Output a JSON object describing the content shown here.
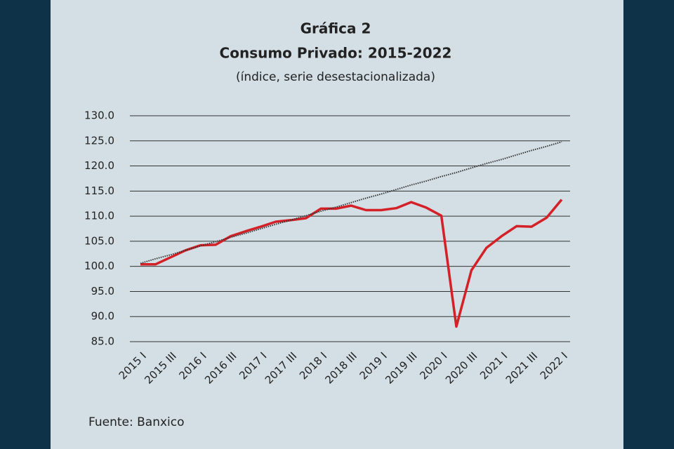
{
  "chart_data": {
    "type": "line",
    "title": "Gráfica 2",
    "subtitle": "Consumo Privado: 2015-2022",
    "subtitle2": "(índice, serie desestacionalizada)",
    "source": "Fuente: Banxico",
    "categories": [
      "2015 I",
      null,
      "2015 III",
      null,
      "2016 I",
      null,
      "2016 III",
      null,
      "2017 I",
      null,
      "2017 III",
      null,
      "2018 I",
      null,
      "2018 III",
      null,
      "2019 I",
      null,
      "2019 III",
      null,
      "2020 I",
      null,
      "2020 III",
      null,
      "2021 I",
      null,
      "2021 III",
      null,
      "2022 I"
    ],
    "series": [
      {
        "color": "#d42027",
        "style": "solid",
        "values": [
          100.4,
          100.4,
          101.8,
          103.2,
          104.2,
          104.3,
          106.0,
          107.0,
          107.9,
          108.9,
          109.2,
          109.6,
          111.5,
          111.5,
          112.1,
          111.2,
          111.2,
          111.6,
          112.8,
          111.7,
          110.1,
          88.0,
          99.2,
          103.7,
          106.0,
          108.0,
          107.9,
          109.7,
          113.3
        ]
      },
      {
        "color": "#333333",
        "style": "dotted",
        "values": [
          100.6,
          101.5,
          102.3,
          103.2,
          104.1,
          104.9,
          105.8,
          106.6,
          107.5,
          108.4,
          109.2,
          110.1,
          111.0,
          111.8,
          112.7,
          113.6,
          114.4,
          115.3,
          116.2,
          117.0,
          117.9,
          118.7,
          119.6,
          120.5,
          121.3,
          122.2,
          123.1,
          123.9,
          124.8
        ]
      }
    ],
    "ylim": [
      85,
      130
    ],
    "yticks": [
      {
        "value": 85,
        "label": "85.0"
      },
      {
        "value": 90,
        "label": "90.0"
      },
      {
        "value": 95,
        "label": "95.0"
      },
      {
        "value": 100,
        "label": "100.0"
      },
      {
        "value": 105,
        "label": "105.0"
      },
      {
        "value": 110,
        "label": "110.0"
      },
      {
        "value": 115,
        "label": "115.0"
      },
      {
        "value": 120,
        "label": "120.0"
      },
      {
        "value": 125,
        "label": "125.0"
      },
      {
        "value": 130,
        "label": "130.0"
      }
    ],
    "grid": true
  }
}
